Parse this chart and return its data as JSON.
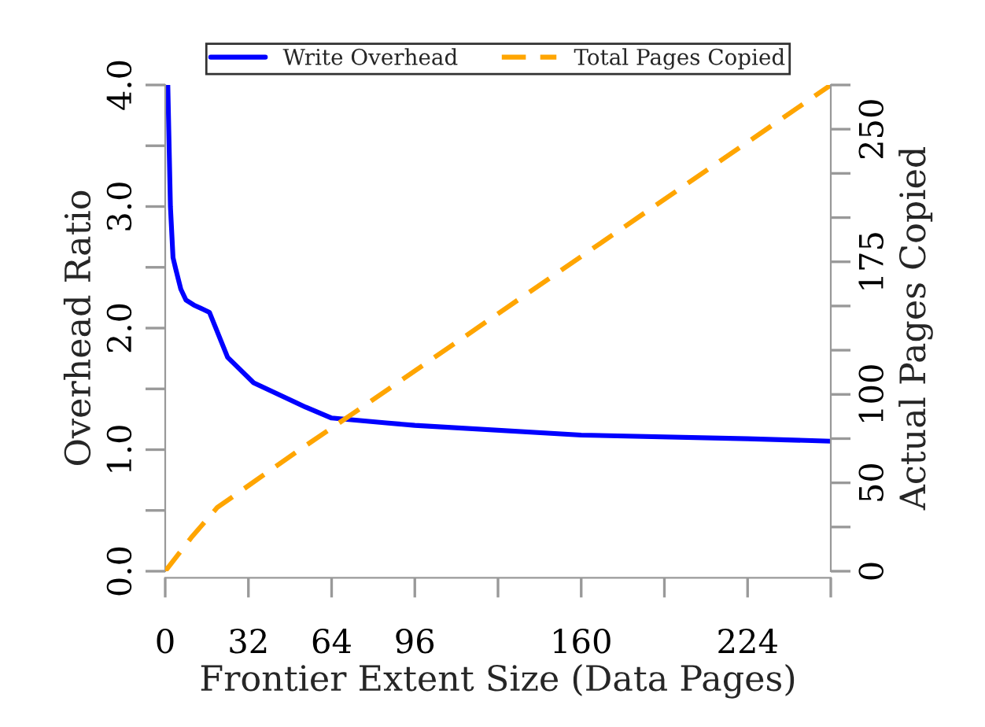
{
  "chart_data": {
    "type": "line",
    "xlabel": "Frontier Extent Size (Data Pages)",
    "ylabel": "Overhead Ratio",
    "y2label": "Actual Pages Copied",
    "series": [
      {
        "name": "Write Overhead",
        "color": "#0000ff",
        "line_style": "solid",
        "x": [
          1,
          2,
          3,
          4,
          6,
          8,
          11,
          17,
          24,
          34,
          54,
          64,
          85,
          96,
          160,
          224,
          256
        ],
        "values": [
          4.0,
          3.0,
          2.58,
          2.49,
          2.32,
          2.23,
          2.19,
          2.13,
          1.76,
          1.55,
          1.35,
          1.26,
          1.22,
          1.2,
          1.12,
          1.09,
          1.07
        ]
      },
      {
        "name": "Total Pages Copied",
        "color": "#ffa500",
        "line_style": "dashed",
        "axis": "y2",
        "x": [
          0,
          10,
          20,
          51,
          71,
          160,
          256
        ],
        "values": [
          0,
          19,
          36,
          68,
          88,
          178,
          275
        ]
      }
    ],
    "xlim": [
      0,
      256
    ],
    "xticks": [
      0,
      32,
      64,
      96,
      {
        "value": 128,
        "label": null
      },
      160,
      {
        "value": 192,
        "label": null
      },
      224,
      {
        "value": 256,
        "label": null
      }
    ],
    "ylim": [
      0,
      4
    ],
    "yticks": [
      {
        "value": 0,
        "label": "0.0"
      },
      {
        "value": 0.5,
        "label": null
      },
      {
        "value": 1,
        "label": "1.0"
      },
      {
        "value": 1.5,
        "label": null
      },
      {
        "value": 2,
        "label": "2.0"
      },
      {
        "value": 2.5,
        "label": null
      },
      {
        "value": 3,
        "label": "3.0"
      },
      {
        "value": 3.5,
        "label": null
      },
      {
        "value": 4,
        "label": "4.0"
      }
    ],
    "y2lim": [
      0,
      275
    ],
    "y2ticks": [
      0,
      {
        "value": 25,
        "label": null
      },
      50,
      {
        "value": 75,
        "label": null
      },
      100,
      {
        "value": 125,
        "label": null
      },
      {
        "value": 150,
        "label": null
      },
      175,
      {
        "value": 200,
        "label": null
      },
      {
        "value": 225,
        "label": null
      },
      250,
      {
        "value": 275,
        "label": null
      }
    ],
    "grid": false,
    "legend": "top"
  }
}
